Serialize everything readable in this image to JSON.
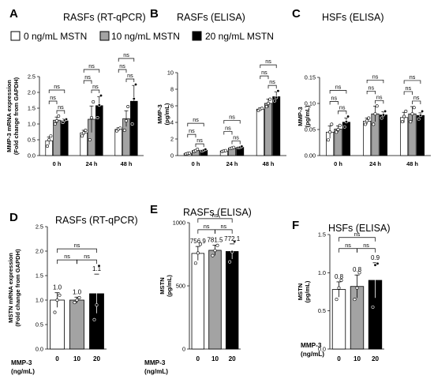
{
  "legend": {
    "items": [
      {
        "label": "0 ng/mL MSTN",
        "color": "#ffffff"
      },
      {
        "label": "10 ng/mL MSTN",
        "color": "#a3a3a3"
      },
      {
        "label": "20 ng/mL MSTN",
        "color": "#000000"
      }
    ]
  },
  "chart_data": [
    {
      "panel": "A",
      "title": "RASFs (RT-qPCR)",
      "type": "bar",
      "ylabel": "MMP-3 mRNA expression\n(Fold change from GAPDH)",
      "ylim": [
        0,
        2.5
      ],
      "yticks": [
        0.0,
        0.5,
        1.0,
        1.5,
        2.0,
        2.5
      ],
      "categories": [
        "0 h",
        "24 h",
        "48 h"
      ],
      "series": [
        {
          "name": "0 ng/mL MSTN",
          "values": [
            0.47,
            0.72,
            0.83
          ],
          "errors": [
            0.12,
            0.08,
            0.05
          ],
          "points": [
            [
              0.3,
              0.5,
              0.62
            ],
            [
              0.62,
              0.72,
              0.8
            ],
            [
              0.78,
              0.84,
              0.87
            ]
          ]
        },
        {
          "name": "10 ng/mL MSTN",
          "values": [
            1.12,
            1.15,
            1.17
          ],
          "errors": [
            0.1,
            0.42,
            0.25
          ],
          "points": [
            [
              1.0,
              1.1,
              1.25
            ],
            [
              0.5,
              1.2,
              1.7
            ],
            [
              0.8,
              1.1,
              1.55
            ]
          ]
        },
        {
          "name": "20 ng/mL MSTN",
          "values": [
            1.1,
            1.58,
            1.72
          ],
          "errors": [
            0.06,
            0.28,
            0.5
          ],
          "points": [
            [
              1.05,
              1.12,
              1.15
            ],
            [
              1.2,
              1.6,
              1.9
            ],
            [
              1.0,
              1.8,
              2.25
            ]
          ]
        }
      ],
      "annotations": [
        "ns"
      ]
    },
    {
      "panel": "B",
      "title": "RASFs (ELISA)",
      "type": "bar",
      "ylabel": "MMP-3\n(pg/mL)",
      "ylim": [
        0,
        10
      ],
      "yticks": [
        0,
        2,
        4,
        6,
        8,
        10
      ],
      "categories": [
        "0 h",
        "24 h",
        "48 h"
      ],
      "series": [
        {
          "name": "0 ng/mL MSTN",
          "values": [
            0.25,
            0.55,
            5.6
          ],
          "errors": [
            0.05,
            0.05,
            0.15
          ],
          "points": [
            [
              0.2,
              0.25,
              0.3
            ],
            [
              0.5,
              0.55,
              0.6
            ],
            [
              5.45,
              5.6,
              5.7
            ]
          ]
        },
        {
          "name": "10 ng/mL MSTN",
          "values": [
            0.6,
            0.9,
            6.3
          ],
          "errors": [
            0.1,
            0.08,
            0.5
          ],
          "points": [
            [
              0.5,
              0.6,
              0.75
            ],
            [
              0.85,
              0.9,
              0.98
            ],
            [
              5.9,
              6.3,
              6.8
            ]
          ]
        },
        {
          "name": "20 ng/mL MSTN",
          "values": [
            0.65,
            1.0,
            7.1
          ],
          "errors": [
            0.08,
            0.08,
            0.6
          ],
          "points": [
            [
              0.55,
              0.65,
              0.75
            ],
            [
              0.95,
              1.0,
              1.1
            ],
            [
              6.6,
              7.0,
              7.8
            ]
          ]
        }
      ],
      "annotations": [
        "ns"
      ]
    },
    {
      "panel": "C",
      "title": "HSFs (ELISA)",
      "type": "bar",
      "ylabel": "MMP-3\n(pg/mL)",
      "ylim": [
        0,
        0.15
      ],
      "yticks": [
        0.0,
        0.05,
        0.1,
        0.15
      ],
      "categories": [
        "0 h",
        "24 h",
        "48 h"
      ],
      "series": [
        {
          "name": "0 ng/mL MSTN",
          "values": [
            0.045,
            0.066,
            0.073
          ],
          "errors": [
            0.012,
            0.006,
            0.01
          ],
          "points": [
            [
              0.03,
              0.045,
              0.06
            ],
            [
              0.06,
              0.067,
              0.072
            ],
            [
              0.065,
              0.075,
              0.085
            ]
          ]
        },
        {
          "name": "10 ng/mL MSTN",
          "values": [
            0.051,
            0.08,
            0.08
          ],
          "errors": [
            0.006,
            0.015,
            0.014
          ],
          "points": [
            [
              0.045,
              0.05,
              0.058
            ],
            [
              0.06,
              0.08,
              0.095
            ],
            [
              0.065,
              0.08,
              0.092
            ]
          ]
        },
        {
          "name": "20 ng/mL MSTN",
          "values": [
            0.064,
            0.078,
            0.077
          ],
          "errors": [
            0.008,
            0.006,
            0.005
          ],
          "points": [
            [
              0.055,
              0.065,
              0.075
            ],
            [
              0.072,
              0.078,
              0.085
            ],
            [
              0.07,
              0.077,
              0.085
            ]
          ]
        }
      ],
      "annotations": [
        "ns"
      ]
    },
    {
      "panel": "D",
      "title": "RASFs (RT-qPCR)",
      "type": "bar",
      "ylabel": "MSTN mRNA expression\n(Fold change from GAPDH)",
      "xlabel": "MMP-3\n(ng/mL)",
      "ylim": [
        0,
        2.5
      ],
      "yticks": [
        0.0,
        0.5,
        1.0,
        1.5,
        2.0,
        2.5
      ],
      "categories": [
        "0",
        "10",
        "20"
      ],
      "values": [
        1.0,
        1.0,
        1.13
      ],
      "errors": [
        0.15,
        0.06,
        0.4
      ],
      "points": [
        [
          0.75,
          1.0,
          1.1
        ],
        [
          0.95,
          1.0,
          1.05
        ],
        [
          0.6,
          0.9,
          1.7
        ]
      ],
      "data_labels": [
        "1.0",
        "1.0",
        "1.1"
      ],
      "colors": [
        "#ffffff",
        "#a3a3a3",
        "#000000"
      ],
      "annotations": [
        "ns"
      ]
    },
    {
      "panel": "E",
      "title": "RASFs (ELISA)",
      "type": "bar",
      "ylabel": "MSTN\n(pg/mL)",
      "xlabel": "MMP-3\n(ng/mL)",
      "ylim": [
        0,
        1000
      ],
      "yticks": [
        0,
        500,
        1000
      ],
      "categories": [
        "0",
        "10",
        "20"
      ],
      "values": [
        756.9,
        781.5,
        772.1
      ],
      "errors": [
        55,
        40,
        60
      ],
      "points": [
        [
          680,
          760,
          830
        ],
        [
          740,
          780,
          820
        ],
        [
          690,
          770,
          850
        ]
      ],
      "data_labels": [
        "756.9",
        "781.5",
        "772.1"
      ],
      "colors": [
        "#ffffff",
        "#a3a3a3",
        "#000000"
      ],
      "annotations": [
        "ns"
      ]
    },
    {
      "panel": "F",
      "title": "HSFs (ELISA)",
      "type": "bar",
      "ylabel": "MSTN\n(pg/mL)",
      "xlabel": "MMP-3\n(ng/mL)",
      "ylim": [
        0,
        1.5
      ],
      "yticks": [
        0.0,
        0.5,
        1.0,
        1.5
      ],
      "categories": [
        "0",
        "10",
        "20"
      ],
      "values": [
        0.78,
        0.82,
        0.9
      ],
      "errors": [
        0.1,
        0.15,
        0.23
      ],
      "points": [
        [
          0.65,
          0.8,
          0.9
        ],
        [
          0.65,
          0.8,
          1.0
        ],
        [
          0.55,
          1.1,
          1.12
        ]
      ],
      "data_labels": [
        "0.8",
        "0.8",
        "0.9"
      ],
      "colors": [
        "#ffffff",
        "#a3a3a3",
        "#000000"
      ],
      "annotations": [
        "ns"
      ]
    }
  ]
}
